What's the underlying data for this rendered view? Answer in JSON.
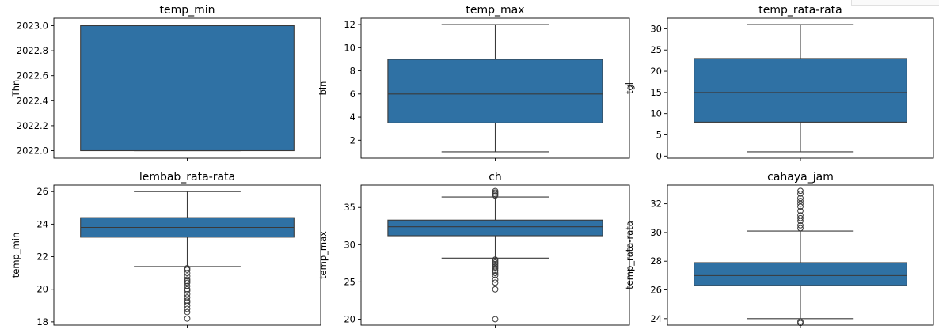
{
  "colors": {
    "box_fill": "#2f71a4",
    "line": "#3a3a3a"
  },
  "chart_data": [
    {
      "type": "box",
      "title": "temp_min",
      "ylabel": "Thn",
      "ylim": [
        2021.94,
        2023.06
      ],
      "yticks": [
        2022.0,
        2022.2,
        2022.4,
        2022.6,
        2022.8,
        2023.0
      ],
      "ytick_labels": [
        "2022.0",
        "2022.2",
        "2022.4",
        "2022.6",
        "2022.8",
        "2023.0"
      ],
      "whisker_low": 2022.0,
      "q1": 2022.0,
      "median": 2023.0,
      "q3": 2023.0,
      "whisker_high": 2023.0,
      "outliers": []
    },
    {
      "type": "box",
      "title": "temp_max",
      "ylabel": "bln",
      "ylim": [
        0.45,
        12.55
      ],
      "yticks": [
        2,
        4,
        6,
        8,
        10,
        12
      ],
      "ytick_labels": [
        "2",
        "4",
        "6",
        "8",
        "10",
        "12"
      ],
      "whisker_low": 1,
      "q1": 3.5,
      "median": 6,
      "q3": 9,
      "whisker_high": 12,
      "outliers": []
    },
    {
      "type": "box",
      "title": "temp_rata-rata",
      "ylabel": "tgl",
      "ylim": [
        -0.5,
        32.5
      ],
      "yticks": [
        0,
        5,
        10,
        15,
        20,
        25,
        30
      ],
      "ytick_labels": [
        "0",
        "5",
        "10",
        "15",
        "20",
        "25",
        "30"
      ],
      "whisker_low": 1,
      "q1": 8,
      "median": 15,
      "q3": 23,
      "whisker_high": 31,
      "outliers": []
    },
    {
      "type": "box",
      "title": "lembab_rata-rata",
      "ylabel": "temp_min",
      "ylim": [
        17.8,
        26.4
      ],
      "yticks": [
        18,
        20,
        22,
        24,
        26
      ],
      "ytick_labels": [
        "18",
        "20",
        "22",
        "24",
        "26"
      ],
      "whisker_low": 21.4,
      "q1": 23.2,
      "median": 23.8,
      "q3": 24.4,
      "whisker_high": 26.0,
      "outliers": [
        21.3,
        21.2,
        21.0,
        20.8,
        20.6,
        20.5,
        20.4,
        20.2,
        20.0,
        19.9,
        19.7,
        19.5,
        19.3,
        19.2,
        19.0,
        18.8,
        18.6,
        18.2
      ]
    },
    {
      "type": "box",
      "title": "ch",
      "ylabel": "temp_max",
      "ylim": [
        19.2,
        38.0
      ],
      "yticks": [
        20,
        25,
        30,
        35
      ],
      "ytick_labels": [
        "20",
        "25",
        "30",
        "35"
      ],
      "whisker_low": 28.2,
      "q1": 31.2,
      "median": 32.4,
      "q3": 33.3,
      "whisker_high": 36.4,
      "outliers": [
        37.2,
        37.0,
        36.8,
        36.6,
        28.0,
        27.8,
        27.6,
        27.4,
        27.2,
        27.0,
        26.8,
        26.5,
        26.2,
        25.9,
        25.3,
        24.9,
        24.0,
        20.0
      ]
    },
    {
      "type": "box",
      "title": "cahaya_jam",
      "ylabel": "temp_rata-rata",
      "ylim": [
        23.55,
        33.3
      ],
      "yticks": [
        24,
        26,
        28,
        30,
        32
      ],
      "ytick_labels": [
        "24",
        "26",
        "28",
        "30",
        "32"
      ],
      "whisker_low": 24.0,
      "q1": 26.3,
      "median": 27.0,
      "q3": 27.9,
      "whisker_high": 30.1,
      "outliers": [
        32.9,
        32.7,
        32.4,
        32.2,
        32.0,
        31.8,
        31.5,
        31.2,
        31.0,
        30.8,
        30.5,
        30.3,
        23.8,
        23.7
      ]
    }
  ]
}
